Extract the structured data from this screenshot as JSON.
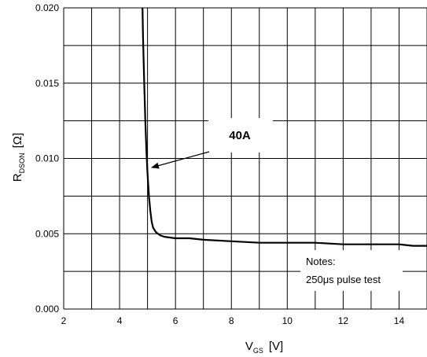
{
  "chart_data": {
    "type": "line",
    "xlabel": {
      "main": "V",
      "sub": "GS",
      "unit": "[V]"
    },
    "ylabel": {
      "main": "R",
      "sub": "DSON",
      "unit": "[Ω]"
    },
    "xlim": [
      2,
      15
    ],
    "ylim": [
      0,
      0.02
    ],
    "xticks": [
      2,
      4,
      6,
      8,
      10,
      12,
      14
    ],
    "xtick_labels": [
      "2",
      "4",
      "6",
      "8",
      "10",
      "12",
      "14"
    ],
    "yticks": [
      0,
      0.005,
      0.01,
      0.015,
      0.02
    ],
    "ytick_labels": [
      "0.000",
      "0.005",
      "0.010",
      "0.015",
      "0.020"
    ],
    "grid": true,
    "series": [
      {
        "name": "40A",
        "x": [
          4.82,
          4.84,
          4.88,
          4.92,
          4.96,
          5.0,
          5.05,
          5.1,
          5.15,
          5.2,
          5.3,
          5.45,
          5.6,
          6.0,
          6.5,
          7.0,
          8.0,
          9.0,
          10.0,
          11.0,
          12.0,
          13.0,
          14.0,
          14.5,
          15.0
        ],
        "y": [
          0.02,
          0.018,
          0.015,
          0.0125,
          0.0105,
          0.009,
          0.0075,
          0.0065,
          0.0058,
          0.0054,
          0.0051,
          0.0049,
          0.0048,
          0.0047,
          0.0047,
          0.0046,
          0.0045,
          0.0044,
          0.0044,
          0.0044,
          0.0043,
          0.0043,
          0.0043,
          0.0042,
          0.0042
        ]
      }
    ],
    "annotations": {
      "series_label": "40A",
      "arrow_target": [
        5.15,
        0.0094
      ],
      "notes_title": "Notes:",
      "notes_body": "250μs pulse test"
    }
  }
}
